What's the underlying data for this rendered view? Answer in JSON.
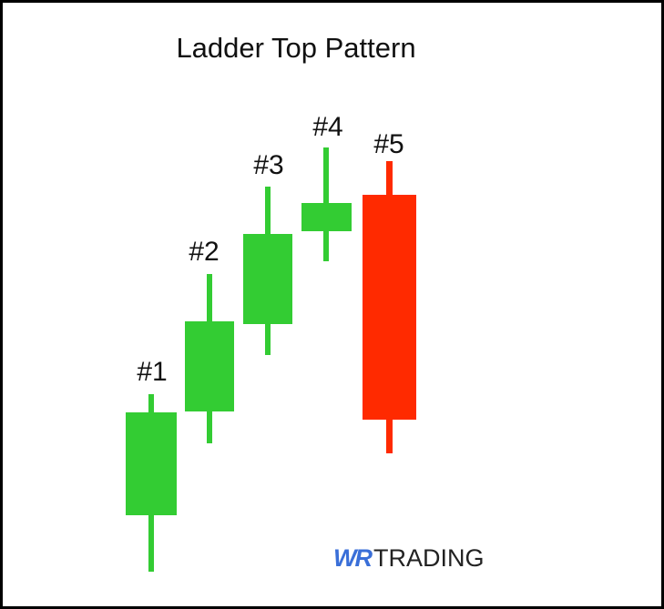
{
  "title": "Ladder Top Pattern",
  "candles": [
    {
      "label": "#1"
    },
    {
      "label": "#2"
    },
    {
      "label": "#3"
    },
    {
      "label": "#4"
    },
    {
      "label": "#5"
    }
  ],
  "logo": {
    "mark": "WR",
    "text": "TRADING"
  }
}
